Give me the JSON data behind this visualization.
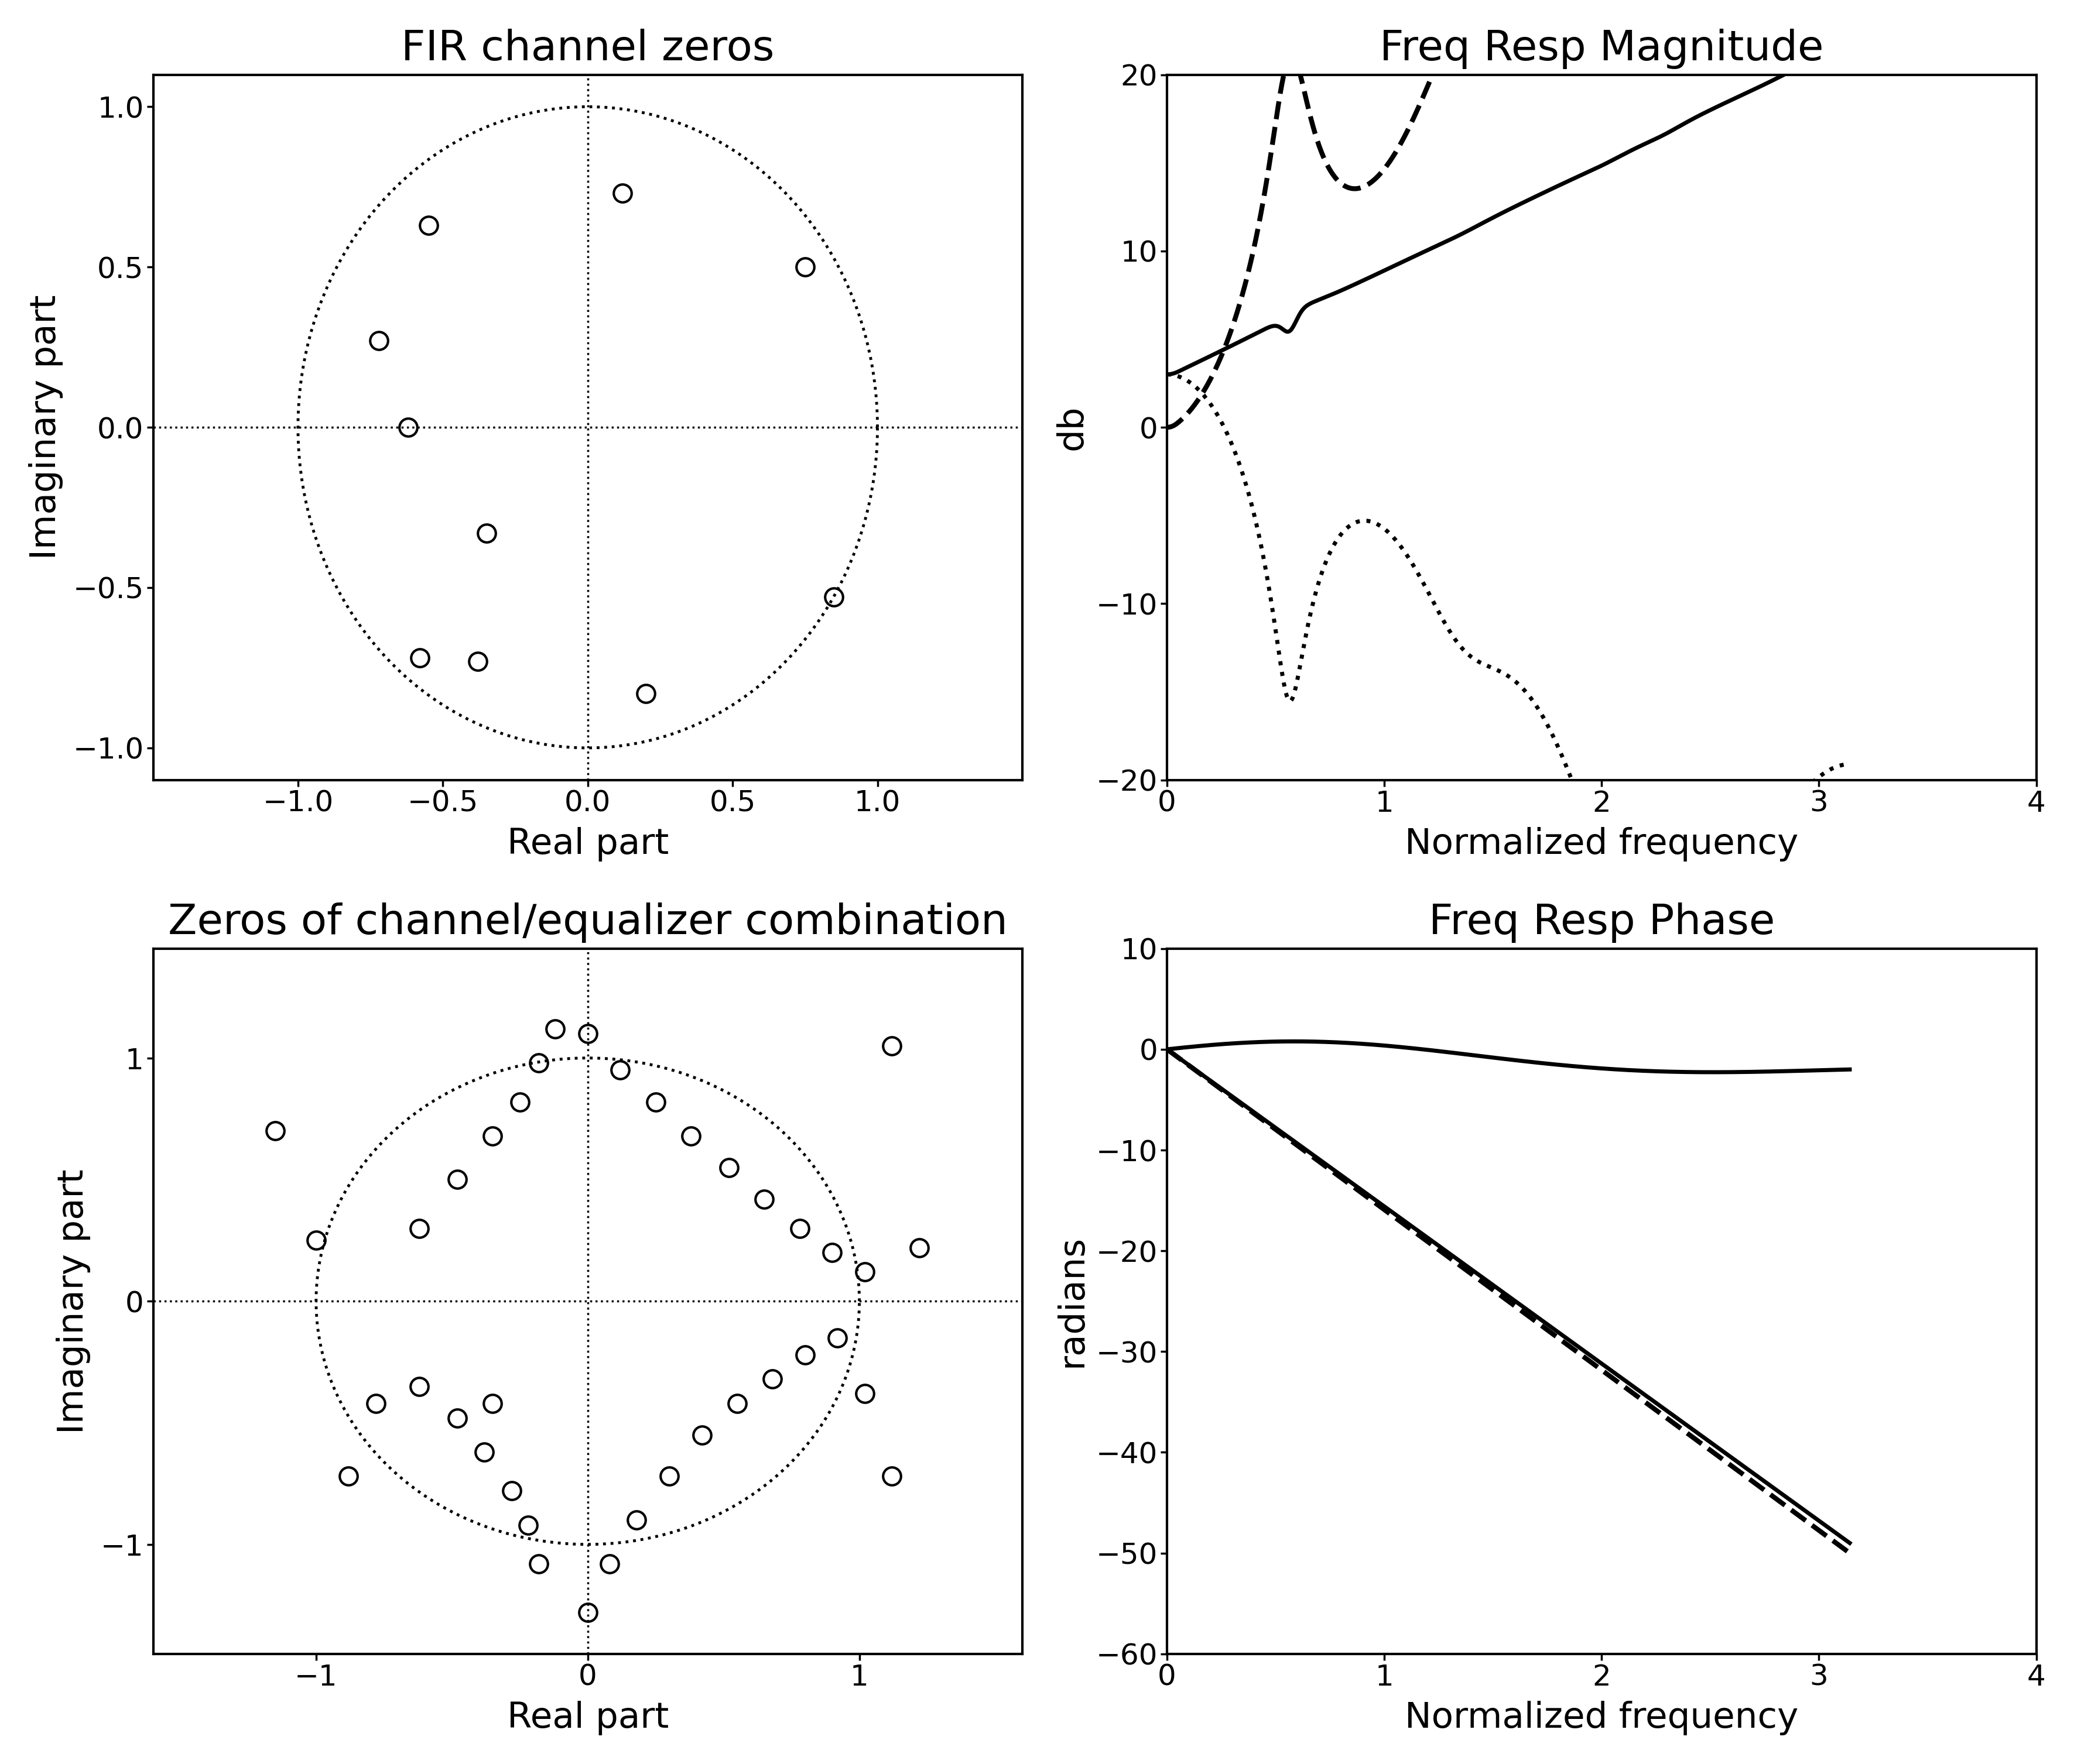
{
  "title_tl": "FIR channel zeros",
  "title_tr": "Freq Resp Magnitude",
  "title_bl": "Zeros of channel/equalizer combination",
  "title_br": "Freq Resp Phase",
  "xlabel_zeros": "Real part",
  "ylabel_zeros": "Imaginary part",
  "xlabel_freq": "Normalized frequency",
  "ylabel_mag": "db",
  "ylabel_phase": "radians",
  "channel_zeros_real": [
    -0.55,
    -0.72,
    -0.35,
    -0.58,
    -0.38,
    0.12,
    0.75,
    0.85,
    0.2,
    -0.62
  ],
  "channel_zeros_imag": [
    0.63,
    0.27,
    -0.33,
    -0.72,
    -0.73,
    0.73,
    0.5,
    -0.53,
    -0.83,
    0.0
  ],
  "combo_zeros_real": [
    -1.15,
    -1.0,
    -0.78,
    -0.62,
    -0.48,
    -0.38,
    -0.28,
    -0.22,
    -0.18,
    -0.62,
    -0.48,
    -0.35,
    -0.25,
    -0.18,
    -0.12,
    0.0,
    0.08,
    0.18,
    0.3,
    0.42,
    0.55,
    0.68,
    0.8,
    0.92,
    1.02,
    1.12,
    0.0,
    0.12,
    0.25,
    0.38,
    0.52,
    0.65,
    0.78,
    0.9,
    1.02,
    1.12,
    1.22,
    -0.88,
    -0.35
  ],
  "combo_zeros_imag": [
    0.7,
    0.25,
    -0.42,
    -0.35,
    -0.48,
    -0.62,
    -0.78,
    -0.92,
    -1.08,
    0.3,
    0.5,
    0.68,
    0.82,
    0.98,
    1.12,
    -1.28,
    -1.08,
    -0.9,
    -0.72,
    -0.55,
    -0.42,
    -0.32,
    -0.22,
    -0.15,
    -0.38,
    -0.72,
    1.1,
    0.95,
    0.82,
    0.68,
    0.55,
    0.42,
    0.3,
    0.2,
    0.12,
    1.05,
    0.22,
    -0.72,
    -0.42
  ],
  "ylim_mag": [
    -20,
    20
  ],
  "ylim_phase": [
    -60,
    10
  ],
  "xlim_freq": [
    0,
    4
  ],
  "xlim_zeros_tl": [
    -1.5,
    1.5
  ],
  "ylim_zeros_tl": [
    -1.1,
    1.1
  ],
  "xlim_zeros_bl": [
    -1.6,
    1.6
  ],
  "ylim_zeros_bl": [
    -1.45,
    1.45
  ],
  "xticks_zeros_tl": [
    -1,
    -0.5,
    0,
    0.5,
    1
  ],
  "yticks_zeros_tl": [
    -1,
    -0.5,
    0,
    0.5,
    1
  ],
  "xticks_zeros_bl": [
    -1,
    0,
    1
  ],
  "yticks_zeros_bl": [
    -1,
    0,
    1
  ],
  "xticks_freq": [
    0,
    1,
    2,
    3,
    4
  ],
  "yticks_mag": [
    -20,
    -10,
    0,
    10,
    20
  ],
  "yticks_phase": [
    -60,
    -50,
    -40,
    -30,
    -20,
    -10,
    0,
    10
  ]
}
